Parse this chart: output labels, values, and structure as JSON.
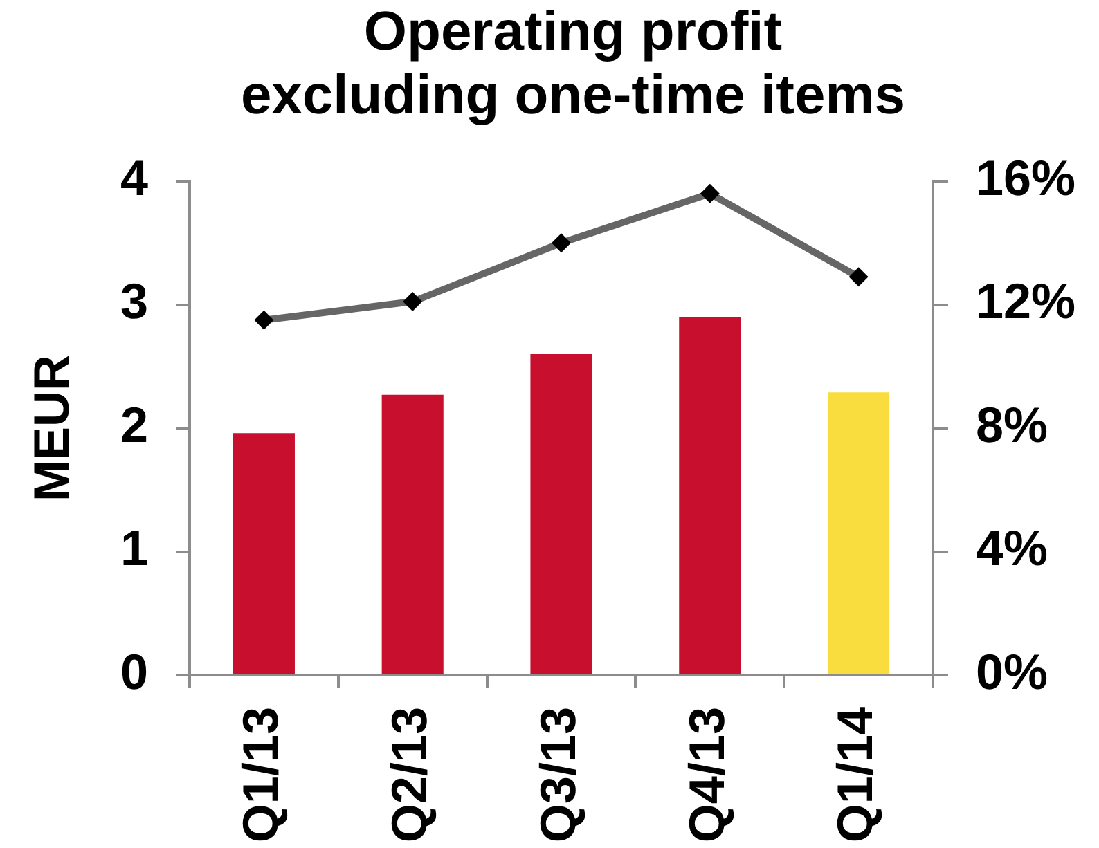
{
  "chart_data": {
    "type": "bar",
    "title": "Operating profit excluding one-time items",
    "ylabel": "MEUR",
    "categories": [
      "Q1/13",
      "Q2/13",
      "Q3/13",
      "Q4/13",
      "Q1/14"
    ],
    "series": [
      {
        "colors": [
          "#c8102e",
          "#c8102e",
          "#c8102e",
          "#c8102e",
          "#f9dc3e"
        ],
        "values": [
          1.96,
          2.27,
          2.6,
          2.9,
          2.29
        ]
      },
      {
        "type": "line",
        "axis": "y2",
        "color": "#666666",
        "marker": "diamond",
        "values": [
          11.5,
          12.1,
          14,
          15.6,
          12.9
        ]
      }
    ],
    "ylim": [
      0,
      4
    ],
    "yticks": [
      0,
      1,
      2,
      3,
      4
    ],
    "y2lim": [
      0,
      16
    ],
    "y2ticks": [
      {
        "value": 0,
        "label": "0%"
      },
      {
        "value": 4,
        "label": "4%"
      },
      {
        "value": 8,
        "label": "8%"
      },
      {
        "value": 12,
        "label": "12%"
      },
      {
        "value": 16,
        "label": "16%"
      }
    ],
    "grid": false,
    "legend": false
  }
}
